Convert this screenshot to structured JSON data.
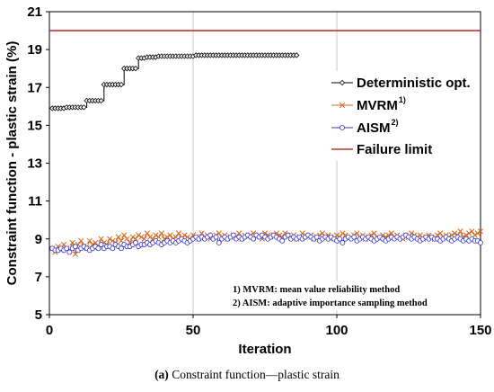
{
  "chart_data": {
    "type": "line",
    "xlabel": "Iteration",
    "ylabel": "Constraint function - plastic strain (%)",
    "xlim": [
      0,
      150
    ],
    "ylim": [
      5,
      21
    ],
    "xticks": [
      "0",
      "50",
      "100",
      "150"
    ],
    "yticks": [
      "5",
      "7",
      "9",
      "11",
      "13",
      "15",
      "17",
      "19",
      "21"
    ],
    "grid": "vertical",
    "legend_position": "right",
    "series": [
      {
        "name": "Deterministic opt.",
        "sup": "",
        "color": "#000000",
        "marker": "diamond",
        "x": [
          1,
          2,
          3,
          4,
          5,
          6,
          7,
          8,
          9,
          10,
          11,
          12,
          13,
          14,
          15,
          16,
          17,
          18,
          19,
          20,
          21,
          22,
          23,
          24,
          25,
          26,
          27,
          28,
          29,
          30,
          31,
          32,
          33,
          34,
          35,
          36,
          37,
          38,
          39,
          40,
          41,
          42,
          43,
          44,
          45,
          46,
          47,
          48,
          49,
          50,
          51,
          52,
          53,
          54,
          55,
          56,
          57,
          58,
          59,
          60,
          61,
          62,
          63,
          64,
          65,
          66,
          67,
          68,
          69,
          70,
          71,
          72,
          73,
          74,
          75,
          76,
          77,
          78,
          79,
          80,
          81,
          82,
          83,
          84,
          85,
          86
        ],
        "values": [
          15.9,
          15.9,
          15.9,
          15.9,
          15.9,
          15.95,
          15.95,
          15.95,
          15.95,
          15.95,
          15.95,
          15.95,
          16.3,
          16.3,
          16.3,
          16.3,
          16.3,
          16.3,
          17.15,
          17.15,
          17.15,
          17.15,
          17.15,
          17.15,
          17.15,
          18.0,
          18.0,
          18.0,
          18.0,
          18.0,
          18.55,
          18.55,
          18.55,
          18.6,
          18.6,
          18.6,
          18.6,
          18.65,
          18.65,
          18.65,
          18.65,
          18.65,
          18.65,
          18.65,
          18.65,
          18.65,
          18.65,
          18.65,
          18.65,
          18.65,
          18.7,
          18.7,
          18.7,
          18.7,
          18.7,
          18.7,
          18.7,
          18.7,
          18.7,
          18.7,
          18.7,
          18.7,
          18.7,
          18.7,
          18.7,
          18.7,
          18.7,
          18.7,
          18.7,
          18.7,
          18.7,
          18.7,
          18.7,
          18.7,
          18.7,
          18.7,
          18.7,
          18.7,
          18.7,
          18.7,
          18.7,
          18.7,
          18.7,
          18.7,
          18.7,
          18.7
        ]
      },
      {
        "name": "MVRM",
        "sup": "1)",
        "color": "#d2691e",
        "marker": "x",
        "x": [
          1,
          2,
          3,
          4,
          5,
          6,
          7,
          8,
          9,
          10,
          11,
          12,
          13,
          14,
          15,
          16,
          17,
          18,
          19,
          20,
          21,
          22,
          23,
          24,
          25,
          26,
          27,
          28,
          29,
          30,
          31,
          32,
          33,
          34,
          35,
          36,
          37,
          38,
          39,
          40,
          41,
          42,
          43,
          44,
          45,
          46,
          47,
          48,
          49,
          50,
          51,
          52,
          53,
          54,
          55,
          56,
          57,
          58,
          59,
          60,
          61,
          62,
          63,
          64,
          65,
          66,
          67,
          68,
          69,
          70,
          71,
          72,
          73,
          74,
          75,
          76,
          77,
          78,
          79,
          80,
          81,
          82,
          83,
          84,
          85,
          86,
          87,
          88,
          89,
          90,
          91,
          92,
          93,
          94,
          95,
          96,
          97,
          98,
          99,
          100,
          101,
          102,
          103,
          104,
          105,
          106,
          107,
          108,
          109,
          110,
          111,
          112,
          113,
          114,
          115,
          116,
          117,
          118,
          119,
          120,
          121,
          122,
          123,
          124,
          125,
          126,
          127,
          128,
          129,
          130,
          131,
          132,
          133,
          134,
          135,
          136,
          137,
          138,
          139,
          140,
          141,
          142,
          143,
          144,
          145,
          146,
          147,
          148,
          149,
          150
        ],
        "values": [
          8.5,
          8.3,
          8.6,
          8.4,
          8.7,
          8.5,
          8.4,
          8.8,
          8.2,
          8.7,
          8.9,
          8.6,
          8.5,
          8.9,
          8.7,
          8.8,
          8.6,
          9.0,
          8.8,
          8.7,
          9.0,
          8.9,
          8.8,
          9.1,
          8.9,
          9.2,
          9.0,
          8.8,
          9.1,
          9.0,
          9.2,
          9.1,
          9.0,
          9.3,
          9.1,
          9.0,
          9.2,
          9.1,
          9.3,
          9.0,
          9.1,
          9.2,
          9.0,
          9.1,
          9.3,
          9.0,
          9.2,
          9.1,
          9.0,
          9.2,
          9.1,
          9.0,
          9.3,
          9.1,
          9.2,
          9.0,
          9.1,
          9.2,
          9.3,
          9.1,
          9.2,
          9.0,
          9.1,
          9.2,
          9.1,
          9.3,
          9.0,
          9.2,
          9.1,
          9.2,
          9.3,
          9.1,
          9.2,
          9.0,
          9.3,
          9.2,
          9.1,
          9.2,
          9.3,
          9.2,
          9.1,
          9.3,
          9.2,
          9.1,
          9.2,
          9.0,
          9.1,
          9.3,
          9.2,
          9.1,
          9.2,
          9.0,
          9.1,
          9.2,
          9.3,
          9.1,
          9.2,
          9.1,
          9.0,
          9.2,
          9.1,
          9.3,
          9.2,
          9.0,
          9.1,
          9.2,
          9.3,
          9.1,
          9.2,
          9.0,
          9.1,
          9.2,
          9.3,
          9.1,
          9.0,
          9.2,
          9.1,
          9.2,
          9.3,
          9.1,
          9.2,
          9.1,
          9.0,
          9.2,
          9.1,
          9.3,
          9.2,
          9.1,
          9.2,
          9.0,
          9.1,
          9.2,
          9.1,
          9.0,
          9.2,
          9.3,
          9.1,
          9.2,
          9.1,
          9.2,
          9.3,
          9.2,
          9.4,
          9.1,
          9.2,
          9.3,
          9.4,
          9.2,
          9.3,
          9.4
        ]
      },
      {
        "name": "AISM",
        "sup": "2)",
        "color": "#3333cc",
        "marker": "circle",
        "x": [
          1,
          2,
          3,
          4,
          5,
          6,
          7,
          8,
          9,
          10,
          11,
          12,
          13,
          14,
          15,
          16,
          17,
          18,
          19,
          20,
          21,
          22,
          23,
          24,
          25,
          26,
          27,
          28,
          29,
          30,
          31,
          32,
          33,
          34,
          35,
          36,
          37,
          38,
          39,
          40,
          41,
          42,
          43,
          44,
          45,
          46,
          47,
          48,
          49,
          50,
          51,
          52,
          53,
          54,
          55,
          56,
          57,
          58,
          59,
          60,
          61,
          62,
          63,
          64,
          65,
          66,
          67,
          68,
          69,
          70,
          71,
          72,
          73,
          74,
          75,
          76,
          77,
          78,
          79,
          80,
          81,
          82,
          83,
          84,
          85,
          86,
          87,
          88,
          89,
          90,
          91,
          92,
          93,
          94,
          95,
          96,
          97,
          98,
          99,
          100,
          101,
          102,
          103,
          104,
          105,
          106,
          107,
          108,
          109,
          110,
          111,
          112,
          113,
          114,
          115,
          116,
          117,
          118,
          119,
          120,
          121,
          122,
          123,
          124,
          125,
          126,
          127,
          128,
          129,
          130,
          131,
          132,
          133,
          134,
          135,
          136,
          137,
          138,
          139,
          140,
          141,
          142,
          143,
          144,
          145,
          146,
          147,
          148,
          149,
          150
        ],
        "values": [
          8.5,
          8.4,
          8.4,
          8.5,
          8.4,
          8.5,
          8.3,
          8.5,
          8.6,
          8.4,
          8.5,
          8.6,
          8.5,
          8.4,
          8.5,
          8.6,
          8.5,
          8.7,
          8.5,
          8.6,
          8.6,
          8.5,
          8.7,
          8.6,
          8.5,
          8.7,
          8.6,
          8.6,
          8.7,
          8.8,
          8.6,
          8.7,
          8.7,
          8.8,
          8.7,
          8.8,
          8.9,
          8.8,
          8.7,
          8.8,
          8.9,
          8.8,
          8.9,
          8.8,
          8.9,
          9.0,
          8.9,
          8.8,
          8.9,
          9.0,
          9.1,
          9.0,
          9.1,
          9.0,
          9.1,
          9.2,
          9.0,
          9.1,
          8.8,
          9.0,
          9.1,
          9.0,
          9.1,
          9.2,
          9.0,
          9.1,
          9.0,
          9.1,
          9.2,
          9.1,
          9.0,
          9.2,
          9.1,
          9.2,
          9.1,
          9.0,
          9.1,
          9.2,
          9.1,
          9.0,
          8.9,
          9.1,
          9.2,
          9.0,
          9.1,
          9.0,
          9.1,
          9.0,
          9.1,
          9.2,
          9.1,
          9.0,
          9.1,
          8.9,
          9.0,
          9.1,
          9.0,
          9.1,
          9.0,
          8.9,
          9.0,
          8.8,
          9.0,
          9.1,
          9.0,
          9.1,
          8.9,
          9.0,
          9.1,
          9.0,
          9.1,
          9.0,
          8.9,
          9.0,
          9.1,
          9.0,
          8.9,
          9.0,
          9.1,
          9.0,
          9.1,
          9.0,
          9.1,
          9.2,
          9.1,
          9.0,
          9.1,
          9.0,
          8.9,
          9.0,
          9.1,
          9.0,
          9.1,
          9.0,
          9.0,
          8.9,
          9.0,
          9.1,
          9.0,
          8.9,
          9.0,
          9.1,
          9.0,
          8.9,
          9.0,
          8.9,
          9.0,
          8.9,
          8.9,
          8.8
        ]
      },
      {
        "name": "Failure limit",
        "sup": "",
        "color": "#b03a2e",
        "marker": "none",
        "x": [
          0,
          150
        ],
        "values": [
          20,
          20
        ]
      }
    ],
    "annotations": [
      "1) MVRM: mean value reliability method",
      "2) AISM: adaptive importance sampling method"
    ]
  },
  "caption": {
    "label": "(a)",
    "text": " Constraint function—plastic strain"
  }
}
